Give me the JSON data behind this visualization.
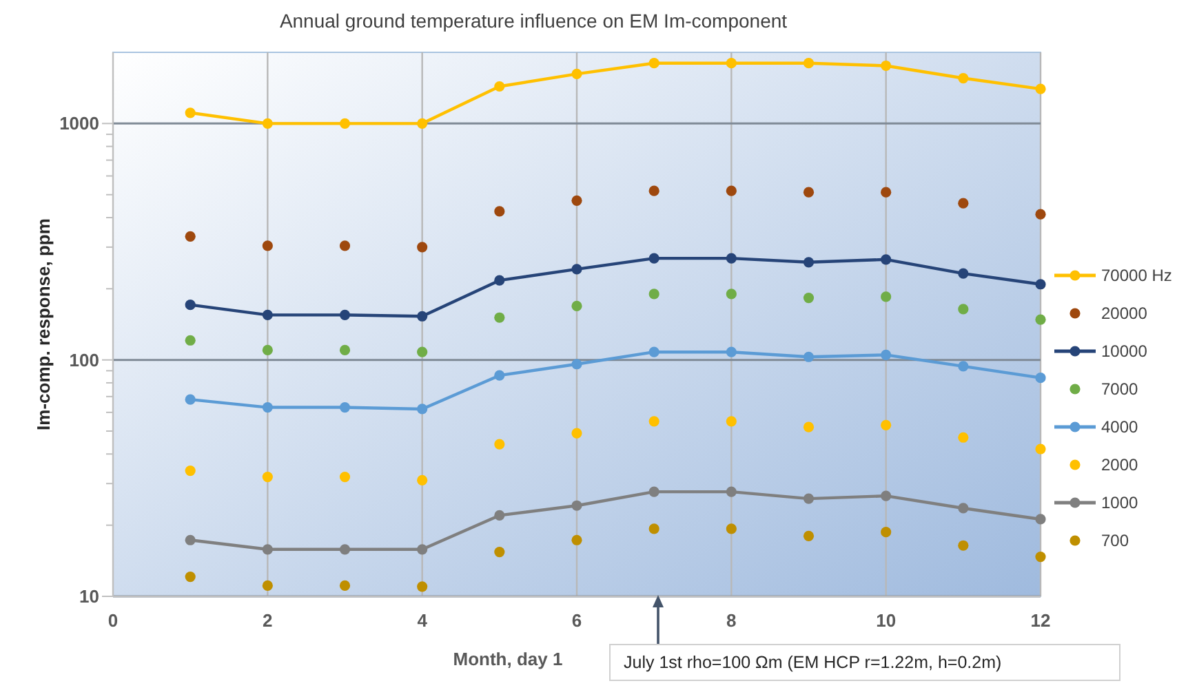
{
  "chart_data": {
    "type": "line",
    "title": "Annual ground temperature influence on EM Im-component",
    "xlabel": "Month, day 1",
    "ylabel": "Im-comp. response, ppm",
    "x": [
      1,
      2,
      3,
      4,
      5,
      6,
      7,
      8,
      9,
      10,
      11,
      12
    ],
    "xlim": [
      0,
      12
    ],
    "xticks": [
      0,
      2,
      4,
      6,
      8,
      10,
      12
    ],
    "ylim": [
      10,
      2000
    ],
    "yticks": [
      10,
      100,
      1000
    ],
    "log": true,
    "grid": true,
    "legend": "right",
    "marker": "circle",
    "series": [
      {
        "name": "70000 Hz",
        "color": "#ffc000",
        "values": [
          1110,
          1000,
          1000,
          1000,
          1435,
          1620,
          1800,
          1800,
          1800,
          1755,
          1555,
          1400
        ]
      },
      {
        "name": "20000",
        "type": "scatter",
        "color": "#9e480e",
        "values": [
          333,
          304,
          304,
          300,
          425,
          472,
          519,
          519,
          512,
          512,
          460,
          413
        ]
      },
      {
        "name": "10000",
        "color": "#264478",
        "values": [
          171,
          155,
          155,
          153,
          217,
          242,
          269,
          269,
          259,
          266,
          232,
          209
        ]
      },
      {
        "name": "7000",
        "type": "scatter",
        "color": "#70ad47",
        "values": [
          121,
          110,
          110,
          108,
          151,
          169,
          190,
          190,
          183,
          185,
          164,
          148
        ]
      },
      {
        "name": "4000",
        "color": "#5b9bd5",
        "values": [
          68,
          63,
          63,
          62,
          86,
          96,
          108,
          108,
          103,
          105,
          94,
          84
        ]
      },
      {
        "name": "2000",
        "type": "scatter",
        "color": "#ffc000",
        "values": [
          34,
          32,
          32,
          31,
          44,
          49,
          55,
          55,
          52,
          53,
          47,
          42
        ]
      },
      {
        "name": "1000",
        "color": "#7f7f7f",
        "values": [
          17.3,
          15.8,
          15.8,
          15.8,
          22,
          24.2,
          27.7,
          27.7,
          25.9,
          26.6,
          23.6,
          21.2
        ]
      },
      {
        "name": "700",
        "type": "scatter",
        "color": "#bf8f00",
        "values": [
          12.1,
          11.1,
          11.1,
          11,
          15.4,
          17.3,
          19.3,
          19.3,
          18,
          18.7,
          16.4,
          14.7
        ]
      }
    ],
    "annotations": [
      "July 1st rho=100 Ωm (EM HCP r=1.22m, h=0.2m)"
    ]
  }
}
